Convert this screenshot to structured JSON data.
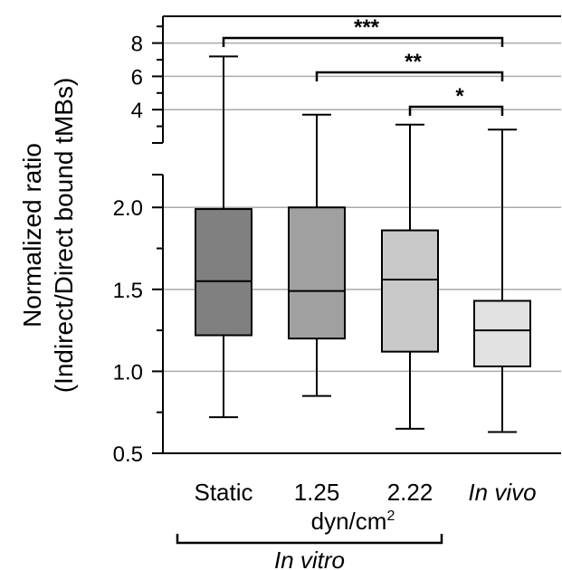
{
  "chart_data": {
    "type": "box",
    "ylabel_line1": "Normalized ratio",
    "ylabel_line2": "(Indirect/Direct bound tMBs)",
    "categories": [
      "Static",
      "1.25",
      "2.22",
      "In vivo"
    ],
    "unit_label": "dyn/cm",
    "unit_superscript": "2",
    "group_label": "In vitro",
    "lower_axis": {
      "ylim": [
        0.5,
        2.2
      ],
      "ticks": [
        "0.5",
        "1.0",
        "1.5",
        "2.0"
      ],
      "tick_values": [
        0.5,
        1.0,
        1.5,
        2.0
      ],
      "grid": true
    },
    "upper_axis": {
      "scale": "linear",
      "ticks": [
        "4",
        "6",
        "8"
      ],
      "tick_values": [
        4,
        6,
        8
      ],
      "grid": true
    },
    "boxes": [
      {
        "category": "Static",
        "q1": 1.22,
        "median": 1.55,
        "q3": 1.99,
        "whisker_low": 0.72,
        "whisker_high": 7.2,
        "color": "#808080"
      },
      {
        "category": "1.25",
        "q1": 1.2,
        "median": 1.49,
        "q3": 2.0,
        "whisker_low": 0.85,
        "whisker_high": 3.7,
        "color": "#a0a0a0"
      },
      {
        "category": "2.22",
        "q1": 1.12,
        "median": 1.56,
        "q3": 1.86,
        "whisker_low": 0.65,
        "whisker_high": 3.1,
        "color": "#c8c8c8"
      },
      {
        "category": "In vivo",
        "q1": 1.03,
        "median": 1.25,
        "q3": 1.43,
        "whisker_low": 0.63,
        "whisker_high": 2.8,
        "color": "#e2e2e2"
      }
    ],
    "significance": [
      {
        "from": "Static",
        "to": "In vivo",
        "label": "***"
      },
      {
        "from": "1.25",
        "to": "In vivo",
        "label": "**"
      },
      {
        "from": "2.22",
        "to": "In vivo",
        "label": "*"
      }
    ]
  }
}
